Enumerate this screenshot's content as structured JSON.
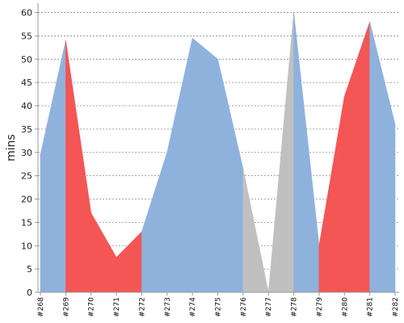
{
  "chart_data": {
    "type": "area",
    "title": "",
    "xlabel": "",
    "ylabel": "mins",
    "ylim": [
      0,
      62
    ],
    "yticks": [
      0,
      5,
      10,
      15,
      20,
      25,
      30,
      35,
      40,
      45,
      50,
      55,
      60
    ],
    "grid": true,
    "legend": "none",
    "categories": [
      "#268",
      "#269",
      "#270",
      "#271",
      "#272",
      "#273",
      "#274",
      "#275",
      "#276",
      "#277",
      "#278",
      "#279",
      "#280",
      "#281",
      "#282"
    ],
    "values": [
      29.5,
      54,
      17,
      7.5,
      13,
      30,
      54.5,
      50,
      26.5,
      0,
      60,
      10,
      42,
      58,
      36
    ],
    "status_colors": {
      "success": "#8eb2dc",
      "failure": "#f45555",
      "aborted": "#c0c0c0"
    },
    "segment_status": [
      "success",
      "failure",
      "failure",
      "failure",
      "success",
      "success",
      "success",
      "success",
      "aborted",
      "aborted",
      "success",
      "failure",
      "failure",
      "success"
    ]
  }
}
